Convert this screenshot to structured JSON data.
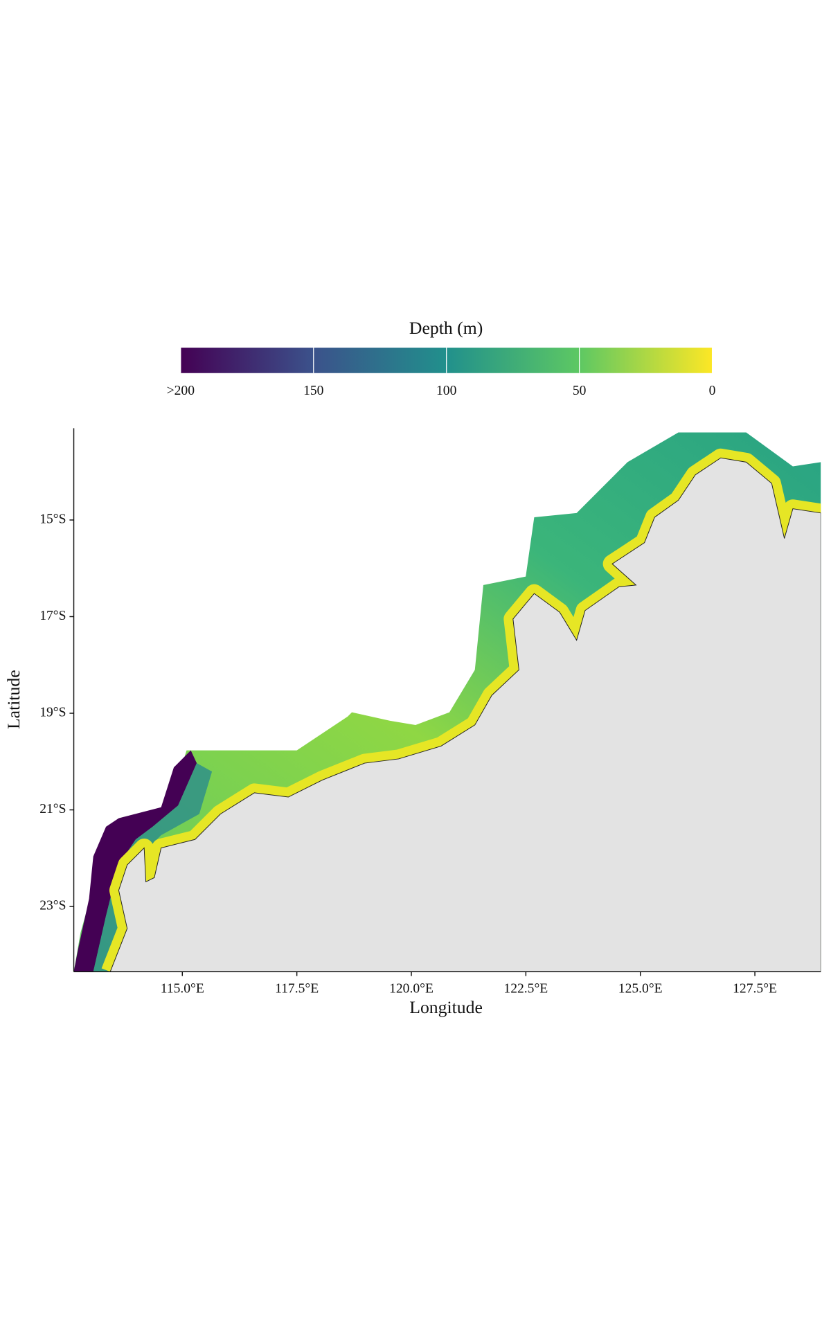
{
  "map": {
    "legend_title": "Depth (m)",
    "colorbar_lim": [
      200,
      0
    ],
    "colorbar_ticks": [
      {
        "value": 200,
        "label": ">200"
      },
      150,
      100,
      50,
      0
    ],
    "colorbar_colors": [
      "#440154",
      "#3b528b",
      "#21908c",
      "#5dc863",
      "#fde725"
    ],
    "xlabel": "Longitude",
    "ylabel": "Latitude",
    "xlim": [
      112.63,
      128.94
    ],
    "ylim": [
      -24.35,
      -13.1
    ],
    "xticks": [
      {
        "value": 115,
        "label": "115.0°E"
      },
      {
        "value": 117.5,
        "label": "117.5°E"
      },
      {
        "value": 120,
        "label": "120.0°E"
      },
      {
        "value": 122.5,
        "label": "122.5°E"
      },
      {
        "value": 125,
        "label": "125.0°E"
      },
      {
        "value": 127.5,
        "label": "127.5°E"
      }
    ],
    "yticks": [
      {
        "value": -15,
        "label": "15°S"
      },
      {
        "value": -17,
        "label": "17°S"
      },
      {
        "value": -19,
        "label": "19°S"
      },
      {
        "value": -21,
        "label": "21°S"
      },
      {
        "value": -23,
        "label": "23°S"
      }
    ],
    "land_color": "#e3e3e3"
  }
}
